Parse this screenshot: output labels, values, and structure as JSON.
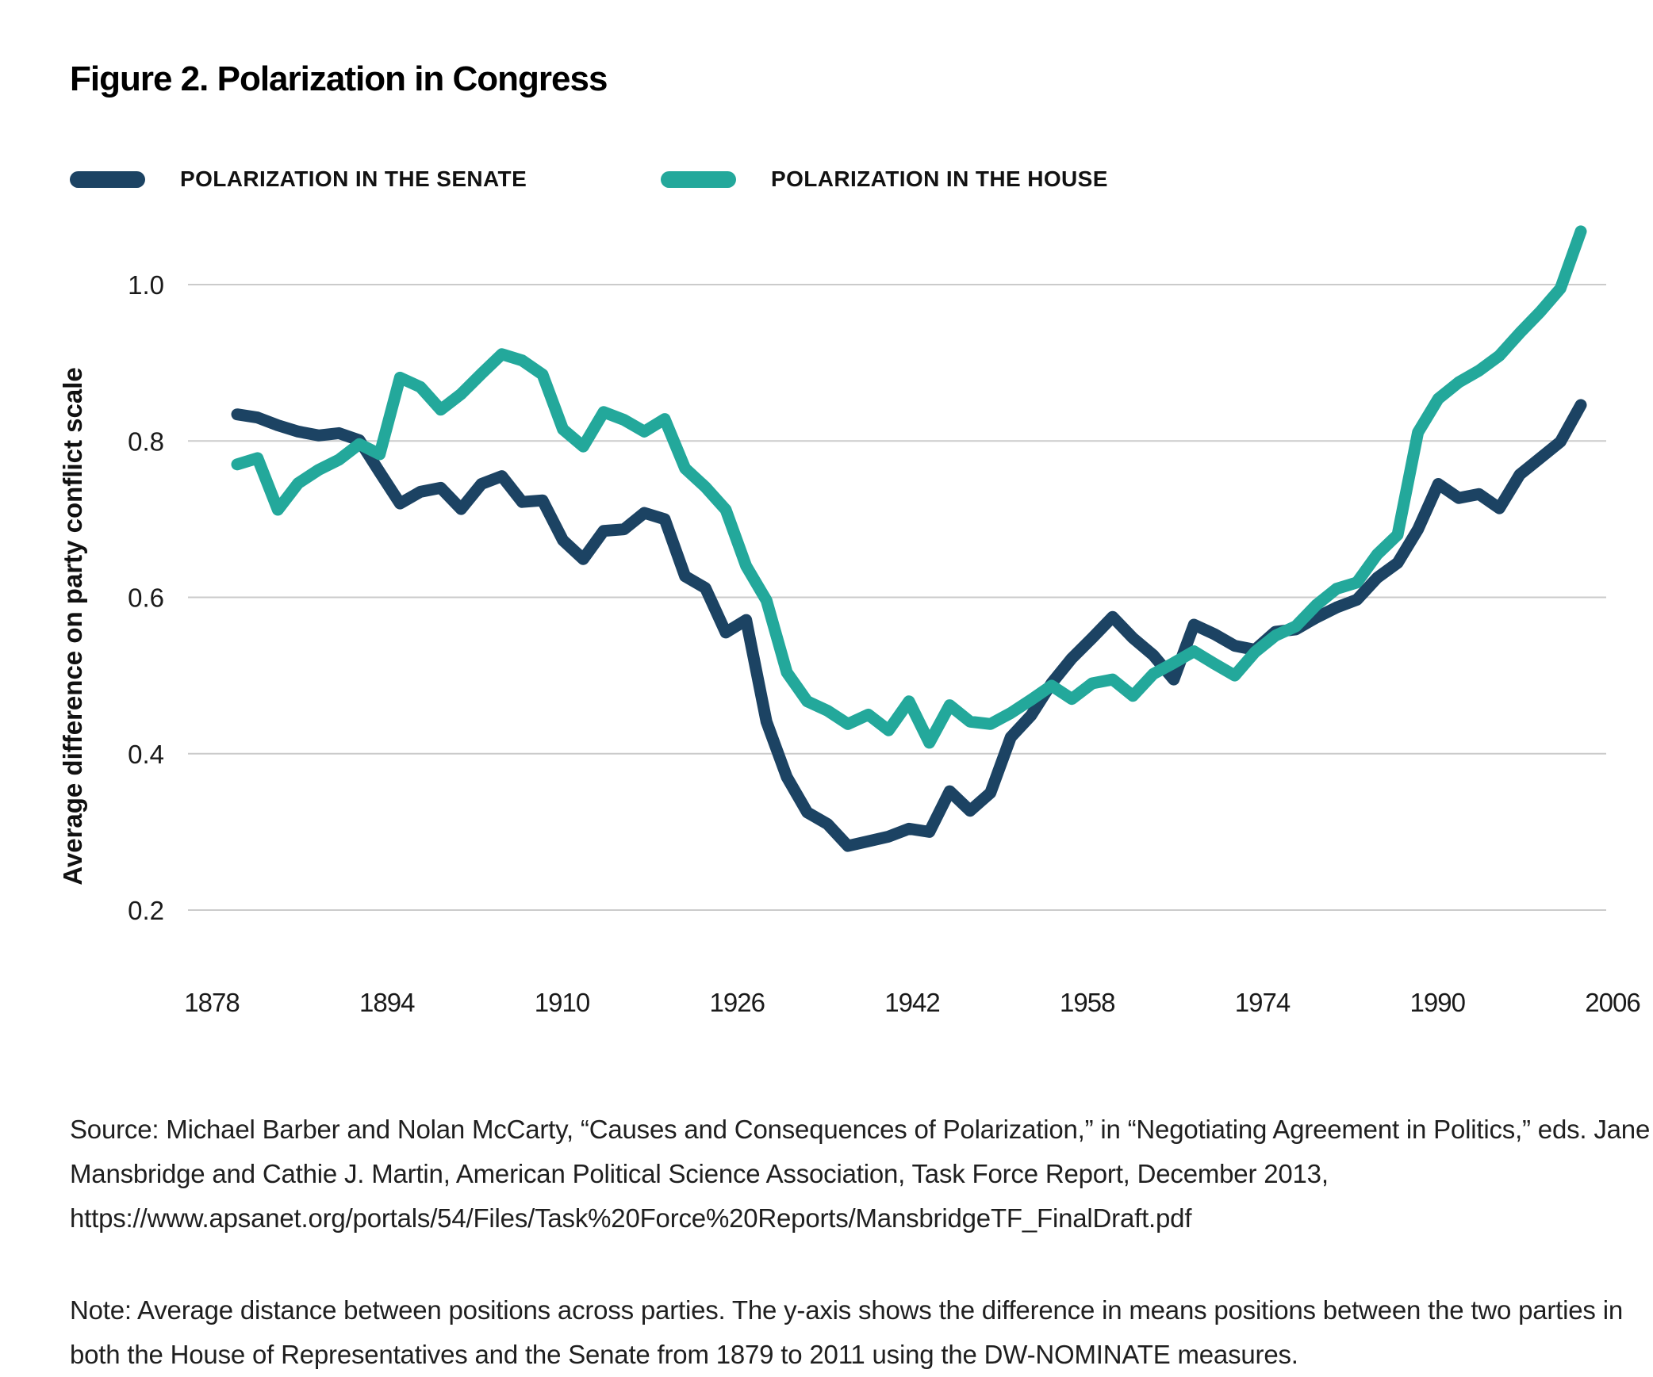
{
  "title": "Figure 2. Polarization in Congress",
  "legend": {
    "items": [
      {
        "label": "POLARIZATION IN THE SENATE",
        "color": "#1C4363"
      },
      {
        "label": "POLARIZATION IN THE HOUSE",
        "color": "#23A89B"
      }
    ]
  },
  "chart": {
    "y_axis_label": "Average difference on party conflict scale",
    "y_ticks": [
      "1.0",
      "0.8",
      "0.6",
      "0.4",
      "0.2"
    ],
    "x_ticks": [
      "1878",
      "1894",
      "1910",
      "1926",
      "1942",
      "1958",
      "1974",
      "1990",
      "2006"
    ],
    "gridline_color": "#CBCBCB",
    "text_color": "#1A1A1A"
  },
  "chart_data": {
    "type": "line",
    "title": "Figure 2. Polarization in Congress",
    "xlabel": "",
    "ylabel": "Average difference on party conflict scale",
    "ylim": [
      0.2,
      1.0
    ],
    "grid": true,
    "legend_position": "top",
    "x": [
      1879,
      1881,
      1883,
      1885,
      1887,
      1889,
      1891,
      1893,
      1895,
      1897,
      1899,
      1901,
      1903,
      1905,
      1907,
      1909,
      1911,
      1913,
      1915,
      1917,
      1919,
      1921,
      1923,
      1925,
      1927,
      1929,
      1931,
      1933,
      1935,
      1937,
      1939,
      1941,
      1943,
      1945,
      1947,
      1949,
      1951,
      1953,
      1955,
      1957,
      1959,
      1961,
      1963,
      1965,
      1967,
      1969,
      1971,
      1973,
      1975,
      1977,
      1979,
      1981,
      1983,
      1985,
      1987,
      1989,
      1991,
      1993,
      1995,
      1997,
      1999,
      2001,
      2003,
      2005,
      2007,
      2009,
      2011
    ],
    "series": [
      {
        "name": "Polarization in the Senate",
        "color": "#1C4363",
        "values": [
          0.834,
          0.83,
          0.82,
          0.812,
          0.807,
          0.81,
          0.801,
          0.76,
          0.72,
          0.735,
          0.74,
          0.713,
          0.745,
          0.755,
          0.722,
          0.724,
          0.673,
          0.649,
          0.685,
          0.687,
          0.708,
          0.7,
          0.627,
          0.612,
          0.555,
          0.571,
          0.441,
          0.37,
          0.325,
          0.31,
          0.282,
          0.288,
          0.294,
          0.304,
          0.3,
          0.352,
          0.327,
          0.35,
          0.421,
          0.449,
          0.49,
          0.522,
          0.548,
          0.575,
          0.548,
          0.526,
          0.495,
          0.565,
          0.553,
          0.538,
          0.533,
          0.556,
          0.559,
          0.574,
          0.587,
          0.597,
          0.625,
          0.644,
          0.687,
          0.745,
          0.727,
          0.732,
          0.714,
          0.757,
          0.778,
          0.799,
          0.846
        ]
      },
      {
        "name": "Polarization in the House",
        "color": "#23A89B",
        "values": [
          0.77,
          0.778,
          0.712,
          0.746,
          0.763,
          0.776,
          0.796,
          0.783,
          0.881,
          0.869,
          0.84,
          0.86,
          0.886,
          0.911,
          0.903,
          0.885,
          0.815,
          0.793,
          0.837,
          0.827,
          0.812,
          0.828,
          0.765,
          0.741,
          0.712,
          0.64,
          0.596,
          0.504,
          0.467,
          0.455,
          0.438,
          0.45,
          0.43,
          0.467,
          0.414,
          0.462,
          0.441,
          0.438,
          0.452,
          0.469,
          0.487,
          0.47,
          0.49,
          0.495,
          0.474,
          0.502,
          0.516,
          0.531,
          0.515,
          0.5,
          0.53,
          0.551,
          0.563,
          0.59,
          0.611,
          0.619,
          0.655,
          0.68,
          0.811,
          0.854,
          0.875,
          0.89,
          0.909,
          0.938,
          0.965,
          0.995,
          1.068
        ]
      }
    ]
  },
  "source": "Source: Michael Barber and Nolan McCarty, “Causes and Consequences of Polarization,” in “Negotiating Agreement in Politics,” eds. Jane Mansbridge and Cathie J. Martin, American Political Science Association, Task Force Report, December 2013, https://www.apsanet.org/portals/54/Files/Task%20Force%20Reports/MansbridgeTF_FinalDraft.pdf",
  "note": "Note: Average distance between positions across parties. The y-axis shows the difference in means positions between the two parties in both the House of Representatives and the Senate from 1879 to 2011 using the DW-NOMINATE measures."
}
